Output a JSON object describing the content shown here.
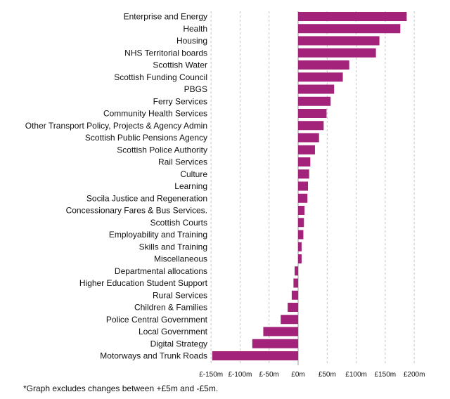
{
  "chart_data": {
    "type": "bar",
    "orientation": "horizontal",
    "categories": [
      "Enterprise and Energy",
      "Health",
      "Housing",
      "NHS Territorial boards",
      "Scottish Water",
      "Scottish Funding Council",
      "PBGS",
      "Ferry Services",
      "Community Health Services",
      "Other Transport Policy, Projects & Agency Admin",
      "Scottish Public Pensions Agency",
      "Scottish Police Authority",
      "Rail Services",
      "Culture",
      "Learning",
      "Socila Justice and Regeneration",
      "Concessionary Fares & Bus Services.",
      "Scottish Courts",
      "Employability and Training",
      "Skills and Training",
      "Miscellaneous",
      "Departmental allocations",
      "Higher Education Student Support",
      "Rural Services",
      "Children & Families",
      "Police Central Government",
      "Local Government",
      "Digital Strategy",
      "Motorways and Trunk Roads"
    ],
    "values": [
      187,
      176,
      140,
      134,
      88,
      77,
      62,
      56,
      49,
      44,
      36,
      29,
      21,
      19,
      17,
      16,
      11,
      10,
      9,
      6,
      6,
      -6,
      -8,
      -11,
      -18,
      -30,
      -60,
      -79,
      -148
    ],
    "xlim": [
      -150,
      200
    ],
    "xticks": [
      -150,
      -100,
      -50,
      0,
      50,
      100,
      150,
      200
    ],
    "xtick_labels": [
      "£-150m",
      "£-100m",
      "£-50m",
      "£0m",
      "£50m",
      "£100m",
      "£150m",
      "£200m"
    ],
    "bar_color": "#a3237b",
    "grid": "vertical dashed",
    "footnote": "*Graph excludes changes between +£5m and -£5m."
  }
}
